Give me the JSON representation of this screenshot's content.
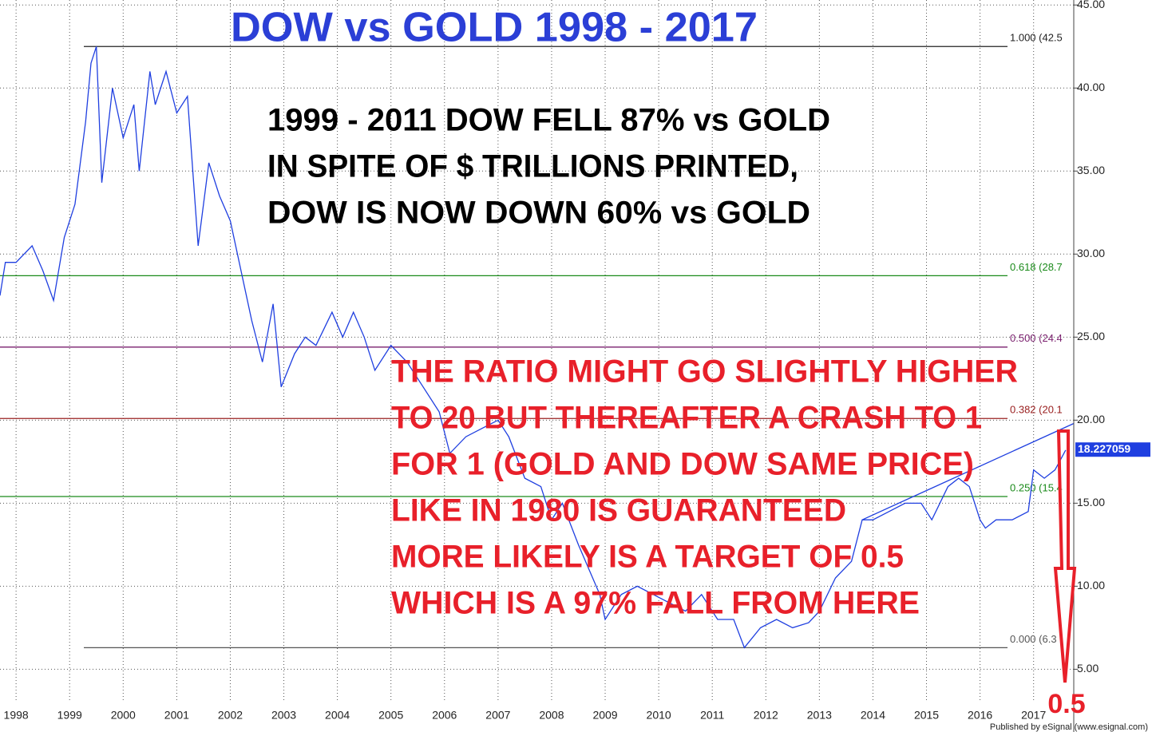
{
  "chart_data": {
    "type": "line",
    "title": "DOW vs GOLD 1998 - 2017",
    "annotations": [
      "1999 - 2011 DOW FELL 87% vs GOLD",
      "IN SPITE OF $ TRILLIONS PRINTED,",
      "DOW IS NOW DOWN 60% vs GOLD"
    ],
    "forecast": [
      "THE RATIO MIGHT GO SLIGHTLY HIGHER",
      "TO 20 BUT THEREAFTER A CRASH TO 1",
      "FOR 1 (GOLD AND DOW SAME PRICE)",
      "LIKE IN 1980 IS GUARANTEED",
      "MORE LIKELY IS A TARGET OF 0.5",
      "WHICH IS A 97% FALL FROM HERE"
    ],
    "target": 0.5,
    "last_value": 18.227059,
    "credit": "Published by eSignal (www.esignal.com)",
    "xlim": [
      1997.7,
      2017.75
    ],
    "xticks": [
      1998,
      1999,
      2000,
      2001,
      2002,
      2003,
      2004,
      2005,
      2006,
      2007,
      2008,
      2009,
      2010,
      2011,
      2012,
      2013,
      2014,
      2015,
      2016,
      2017
    ],
    "ylim": [
      3,
      45.3
    ],
    "yticks": [
      {
        "value": 45,
        "label": "45.00"
      },
      {
        "value": 40,
        "label": "40.00"
      },
      {
        "value": 35,
        "label": "35.00"
      },
      {
        "value": 30,
        "label": "30.00"
      },
      {
        "value": 25,
        "label": "25.00"
      },
      {
        "value": 20,
        "label": "20.00"
      },
      {
        "value": 15,
        "label": "15.00"
      },
      {
        "value": 10,
        "label": "10.00"
      },
      {
        "value": 5,
        "label": "5.00"
      }
    ],
    "grid": true,
    "series": [
      {
        "color": "#1f3fe0",
        "x": [
          1997.7,
          1997.8,
          1998.0,
          1998.3,
          1998.5,
          1998.7,
          1998.9,
          1999.1,
          1999.3,
          1999.4,
          1999.5,
          1999.6,
          1999.8,
          2000.0,
          2000.2,
          2000.3,
          2000.5,
          2000.6,
          2000.8,
          2001.0,
          2001.2,
          2001.4,
          2001.6,
          2001.8,
          2002.0,
          2002.2,
          2002.4,
          2002.6,
          2002.8,
          2002.95,
          2003.2,
          2003.4,
          2003.6,
          2003.9,
          2004.1,
          2004.3,
          2004.5,
          2004.7,
          2005.0,
          2005.3,
          2005.6,
          2005.9,
          2006.1,
          2006.4,
          2006.7,
          2007.0,
          2007.2,
          2007.5,
          2007.8,
          2008.0,
          2008.2,
          2008.5,
          2008.7,
          2008.9,
          2009.0,
          2009.3,
          2009.6,
          2009.9,
          2010.2,
          2010.5,
          2010.8,
          2011.1,
          2011.4,
          2011.6,
          2011.9,
          2012.2,
          2012.5,
          2012.8,
          2013.0,
          2013.3,
          2013.6,
          2013.8,
          2014.0,
          2014.3,
          2014.6,
          2014.9,
          2015.1,
          2015.4,
          2015.6,
          2015.8,
          2016.0,
          2016.1,
          2016.3,
          2016.6,
          2016.9,
          2017.0,
          2017.2,
          2017.4,
          2017.6
        ],
        "values": [
          27.5,
          29.5,
          29.5,
          30.5,
          29,
          27.2,
          31,
          33,
          38,
          41.5,
          42.5,
          34.3,
          40,
          37,
          39,
          35,
          41,
          39,
          41,
          38.5,
          39.5,
          30.5,
          35.5,
          33.5,
          32,
          29,
          26,
          23.5,
          27,
          22,
          24,
          25,
          24.5,
          26.5,
          25,
          26.5,
          25,
          23,
          24.5,
          23.5,
          22,
          20.5,
          18,
          19,
          19.5,
          20,
          19,
          16.5,
          16,
          14,
          15,
          12.5,
          11,
          9.5,
          8,
          9.5,
          10,
          9.5,
          9,
          8.5,
          9.5,
          8,
          8,
          6.3,
          7.5,
          8,
          7.5,
          7.8,
          8.5,
          10.5,
          11.5,
          14,
          14,
          14.5,
          15,
          15,
          14,
          16,
          16.5,
          16,
          14,
          13.5,
          14,
          14,
          14.5,
          17,
          16.5,
          17,
          18.2
        ]
      }
    ],
    "levels": [
      {
        "label": "1.000 (42.5",
        "value": 42.5,
        "color": "#222222"
      },
      {
        "label": "0.618 (28.7",
        "value": 28.7,
        "color": "#1a8a1a"
      },
      {
        "label": "0.500 (24.4",
        "value": 24.4,
        "color": "#7a1f6e"
      },
      {
        "label": "0.382 (20.1",
        "value": 20.1,
        "color": "#9a2020"
      },
      {
        "label": "0.250 (15.4",
        "value": 15.4,
        "color": "#1a8a1a"
      },
      {
        "label": "0.000 (6.3",
        "value": 6.3,
        "color": "#555555"
      }
    ],
    "trendline": {
      "x": [
        2013.8,
        2017.75
      ],
      "values": [
        14,
        19.8
      ],
      "color": "#1f3fe0"
    }
  }
}
